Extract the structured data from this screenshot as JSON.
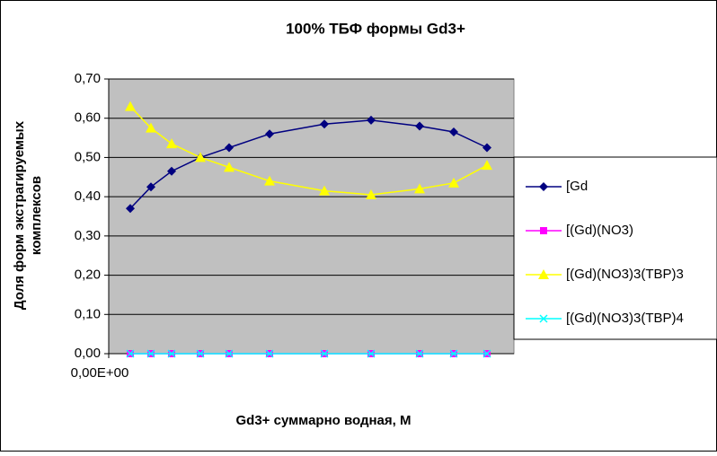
{
  "chart_data": {
    "type": "scatter-line",
    "title": "100%  ТБФ  формы Gd3+",
    "x_label": "Gd3+ суммарно   водная, М",
    "y_label": [
      "Доля форм экстрагируемых",
      "комплексов"
    ],
    "x": [
      0.024,
      0.047,
      0.07,
      0.102,
      0.134,
      0.179,
      0.24,
      0.292,
      0.346,
      0.384,
      0.421
    ],
    "xlim": [
      0,
      0.451
    ],
    "xticks": [
      {
        "value": 0,
        "label": "0,00E+00"
      }
    ],
    "ylim": [
      0,
      0.7
    ],
    "yticks": [
      {
        "value": 0,
        "label": "0,00"
      },
      {
        "value": 0.1,
        "label": "0,10"
      },
      {
        "value": 0.2,
        "label": "0,20"
      },
      {
        "value": 0.3,
        "label": "0,30"
      },
      {
        "value": 0.4,
        "label": "0,40"
      },
      {
        "value": 0.5,
        "label": "0,50"
      },
      {
        "value": 0.6,
        "label": "0,60"
      },
      {
        "value": 0.7,
        "label": "0,70"
      }
    ],
    "grid": true,
    "legend": "right",
    "series": [
      {
        "name": "[Gd",
        "color": "#000080",
        "marker": "diamond",
        "values": [
          0.37,
          0.425,
          0.465,
          0.5,
          0.525,
          0.56,
          0.585,
          0.595,
          0.58,
          0.565,
          0.525
        ]
      },
      {
        "name": "[(Gd)(NO3)",
        "color": "#FF00FF",
        "marker": "square",
        "values": [
          0,
          0,
          0,
          0,
          0,
          0,
          0,
          0,
          0,
          0,
          0
        ]
      },
      {
        "name": "[(Gd)(NO3)3(TBP)3",
        "color": "#FFFF00",
        "marker": "triangle",
        "values": [
          0.63,
          0.575,
          0.535,
          0.5,
          0.475,
          0.44,
          0.415,
          0.405,
          0.42,
          0.435,
          0.48
        ]
      },
      {
        "name": "[(Gd)(NO3)3(TBP)4",
        "color": "#00FFFF",
        "marker": "x",
        "values": [
          0,
          0,
          0,
          0,
          0,
          0,
          0,
          0,
          0,
          0,
          0
        ]
      }
    ]
  }
}
